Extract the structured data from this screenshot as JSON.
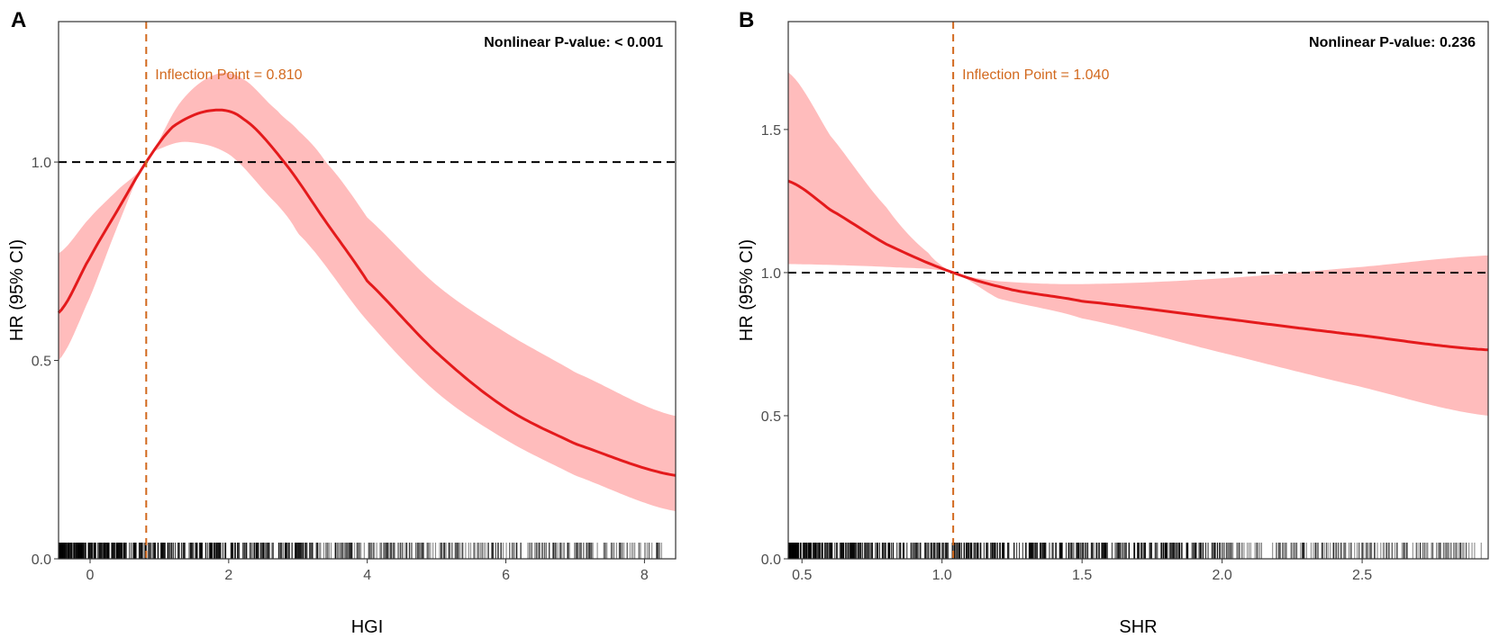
{
  "chart_data": [
    {
      "type": "line",
      "panel_label": "A",
      "xlabel": "HGI",
      "ylabel": "HR (95% CI)",
      "xlim": [
        -0.455,
        8.45
      ],
      "ylim": [
        0,
        1.354
      ],
      "xticks": [
        0,
        2,
        4,
        6,
        8
      ],
      "xtick_labels": [
        "0",
        "2",
        "4",
        "6",
        "8"
      ],
      "yticks": [
        0,
        0.5,
        1
      ],
      "ytick_labels": [
        "0.0",
        "0.5",
        "1.0"
      ],
      "reference_hr": 1.0,
      "inflection_x": 0.81,
      "inflection_label": "Inflection Point = 0.810",
      "pvalue_label": "Nonlinear P-value:  < 0.001",
      "colors": {
        "line": "#e41a1c",
        "ci": "#ffbcbc",
        "inflection": "#d2691e",
        "ref": "#000000"
      },
      "series": [
        {
          "name": "HR",
          "x": [
            -0.455,
            0,
            0.4,
            0.81,
            1.2,
            1.75,
            2.2,
            2.8,
            3.4,
            4,
            5,
            6,
            7,
            8.45
          ],
          "y": [
            0.62,
            0.76,
            0.88,
            1.0,
            1.09,
            1.13,
            1.11,
            1.0,
            0.85,
            0.7,
            0.52,
            0.38,
            0.29,
            0.21
          ]
        },
        {
          "name": "CI upper",
          "x": [
            -0.455,
            0,
            0.4,
            0.81,
            1.3,
            1.8,
            2.2,
            2.7,
            3.0,
            3.4,
            4,
            5,
            6,
            7,
            8.45
          ],
          "y": [
            0.77,
            0.86,
            0.93,
            1.0,
            1.15,
            1.22,
            1.21,
            1.13,
            1.08,
            1.0,
            0.86,
            0.69,
            0.57,
            0.47,
            0.36
          ]
        },
        {
          "name": "CI lower",
          "x": [
            -0.455,
            0,
            0.4,
            0.81,
            1.1,
            1.45,
            2.0,
            2.5,
            3.0,
            4,
            5,
            6,
            7,
            8.45
          ],
          "y": [
            0.5,
            0.66,
            0.84,
            1.0,
            1.04,
            1.05,
            1.02,
            0.93,
            0.82,
            0.6,
            0.42,
            0.3,
            0.21,
            0.12
          ]
        }
      ]
    },
    {
      "type": "line",
      "panel_label": "B",
      "xlabel": "SHR",
      "ylabel": "HR (95% CI)",
      "xlim": [
        0.451,
        2.95
      ],
      "ylim": [
        0,
        1.877
      ],
      "xticks": [
        0.5,
        1.0,
        1.5,
        2.0,
        2.5
      ],
      "xtick_labels": [
        "0.5",
        "1.0",
        "1.5",
        "2.0",
        "2.5"
      ],
      "yticks": [
        0,
        0.5,
        1,
        1.5
      ],
      "ytick_labels": [
        "0.0",
        "0.5",
        "1.0",
        "1.5"
      ],
      "reference_hr": 1.0,
      "inflection_x": 1.04,
      "inflection_label": "Inflection Point = 1.040",
      "pvalue_label": "Nonlinear P-value: 0.236",
      "colors": {
        "line": "#e41a1c",
        "ci": "#ffbcbc",
        "inflection": "#d2691e",
        "ref": "#000000"
      },
      "series": [
        {
          "name": "HR",
          "x": [
            0.451,
            0.6,
            0.8,
            1.04,
            1.25,
            1.5,
            2.0,
            2.5,
            2.95
          ],
          "y": [
            1.32,
            1.22,
            1.1,
            1.0,
            0.94,
            0.9,
            0.84,
            0.78,
            0.73
          ]
        },
        {
          "name": "CI upper",
          "x": [
            0.451,
            0.6,
            0.8,
            0.95,
            1.04,
            1.2,
            1.5,
            2.0,
            2.5,
            2.95
          ],
          "y": [
            1.7,
            1.48,
            1.23,
            1.07,
            1.0,
            0.97,
            0.96,
            0.98,
            1.02,
            1.06
          ]
        },
        {
          "name": "CI lower",
          "x": [
            0.451,
            0.8,
            1.04,
            1.2,
            1.5,
            2.0,
            2.5,
            2.95
          ],
          "y": [
            1.03,
            1.02,
            1.0,
            0.91,
            0.84,
            0.72,
            0.6,
            0.5
          ]
        }
      ]
    }
  ]
}
